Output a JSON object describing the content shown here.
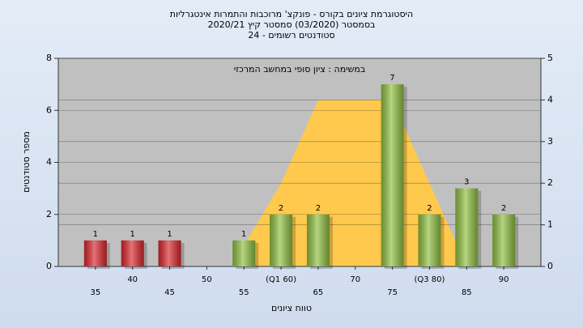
{
  "chart_data": {
    "type": "bar",
    "title": [
      "היסטוגרמת ציונים בקורס - פונקצ' מרוכבות והתמרות אינטגרליות",
      "בסמסטר  (03/2020)  סמסטר קיץ  2020/21",
      "סטודנטים רשומים - 24"
    ],
    "annotation": "במשימה : ציון סופי במחשב המרכזי",
    "x_label": "טווח ציונים",
    "y_label": "מספר סטודנטים",
    "categories": [
      "35",
      "40",
      "45",
      "50",
      "55",
      "(Q1 60)",
      "65",
      "70",
      "75",
      "(Q3 80)",
      "85",
      "90"
    ],
    "values": [
      1,
      1,
      1,
      0,
      1,
      2,
      2,
      0,
      7,
      2,
      3,
      2
    ],
    "colors": [
      "#d9262b",
      "#d9262b",
      "#d9262b",
      "#8fbf3f",
      "#8fbf3f",
      "#8fbf3f",
      "#8fbf3f",
      "#8fbf3f",
      "#8fbf3f",
      "#8fbf3f",
      "#8fbf3f",
      "#8fbf3f"
    ],
    "area": {
      "values": [
        null,
        null,
        null,
        null,
        0.5,
        2,
        4,
        4,
        4,
        2,
        0,
        null
      ],
      "color": "#ffc94d",
      "axis": "y2"
    },
    "ylim": [
      0,
      8
    ],
    "yticks": [
      0,
      2,
      4,
      6,
      8
    ],
    "y2lim": [
      0,
      5
    ],
    "y2ticks": [
      0,
      1,
      2,
      3,
      4,
      5
    ],
    "grid": true
  }
}
